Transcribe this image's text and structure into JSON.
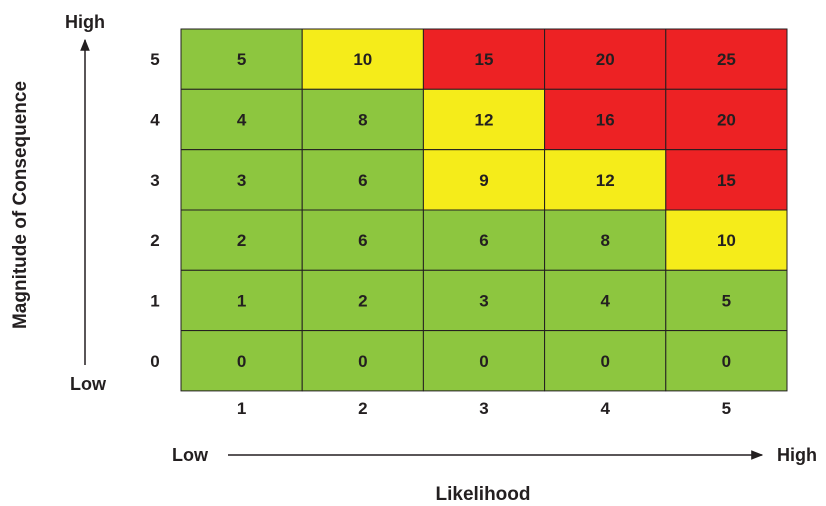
{
  "chart_data": {
    "type": "heatmap",
    "x": [
      1,
      2,
      3,
      4,
      5
    ],
    "y": [
      5,
      4,
      3,
      2,
      1,
      0
    ],
    "values": [
      [
        5,
        10,
        15,
        20,
        25
      ],
      [
        4,
        8,
        12,
        16,
        20
      ],
      [
        3,
        6,
        9,
        12,
        15
      ],
      [
        2,
        6,
        6,
        8,
        10
      ],
      [
        1,
        2,
        3,
        4,
        5
      ],
      [
        0,
        0,
        0,
        0,
        0
      ]
    ],
    "cell_colors": [
      [
        "green",
        "yellow",
        "red",
        "red",
        "red"
      ],
      [
        "green",
        "green",
        "yellow",
        "red",
        "red"
      ],
      [
        "green",
        "green",
        "yellow",
        "yellow",
        "red"
      ],
      [
        "green",
        "green",
        "green",
        "green",
        "yellow"
      ],
      [
        "green",
        "green",
        "green",
        "green",
        "green"
      ],
      [
        "green",
        "green",
        "green",
        "green",
        "green"
      ]
    ],
    "xlabel": "Likelihood",
    "ylabel": "Magnitude of Consequence",
    "x_axis_low": "Low",
    "x_axis_high": "High",
    "y_axis_low": "Low",
    "y_axis_high": "High",
    "colors": {
      "green": "#8dc63f",
      "yellow": "#f5ec1a",
      "red": "#ed2224",
      "grid": "#231f20"
    },
    "grid": true
  }
}
